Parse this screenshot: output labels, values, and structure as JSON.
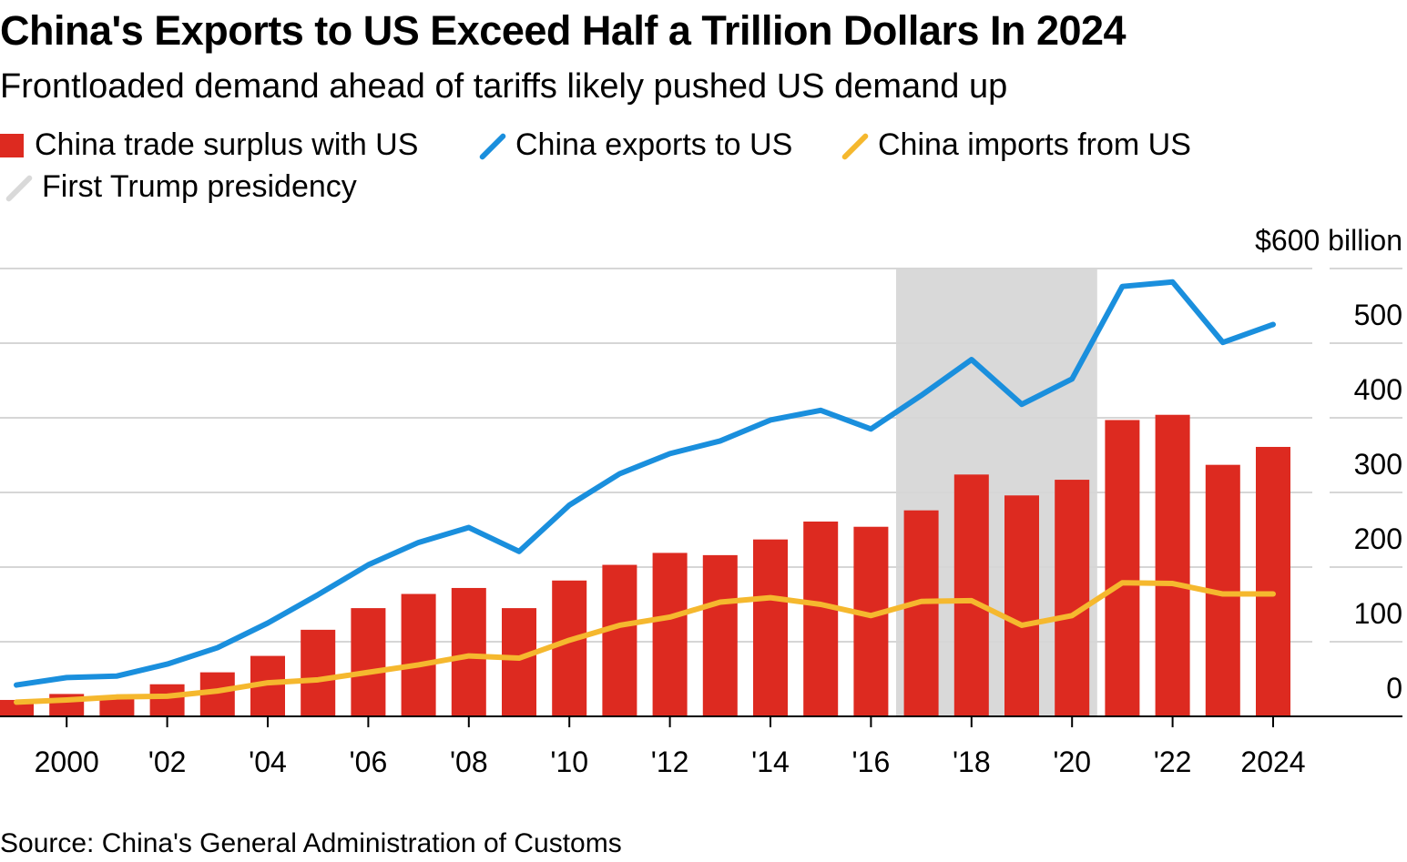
{
  "title": "China's Exports to US Exceed Half a Trillion Dollars In 2024",
  "subtitle": "Frontloaded demand ahead of tariffs likely pushed US demand up",
  "legend": [
    {
      "label": "China trade surplus with US",
      "kind": "bar",
      "color": "#dd2a20"
    },
    {
      "label": "China exports to US",
      "kind": "line",
      "color": "#1a8fdd"
    },
    {
      "label": "China imports from US",
      "kind": "line",
      "color": "#f5b82e"
    },
    {
      "label": "First Trump presidency",
      "kind": "shade",
      "color": "#d9d9d9"
    }
  ],
  "source": "Source: China's General Administration of Customs",
  "chart_data": {
    "type": "bar+line",
    "x": [
      1999,
      2000,
      2001,
      2002,
      2003,
      2004,
      2005,
      2006,
      2007,
      2008,
      2009,
      2010,
      2011,
      2012,
      2013,
      2014,
      2015,
      2016,
      2017,
      2018,
      2019,
      2020,
      2021,
      2022,
      2023,
      2024
    ],
    "x_tick_values": [
      2000,
      2002,
      2004,
      2006,
      2008,
      2010,
      2012,
      2014,
      2016,
      2018,
      2020,
      2022,
      2024
    ],
    "x_tick_labels": [
      "2000",
      "'02",
      "'04",
      "'06",
      "'08",
      "'10",
      "'12",
      "'14",
      "'16",
      "'18",
      "'20",
      "'22",
      "2024"
    ],
    "y_tick_values": [
      0,
      100,
      200,
      300,
      400,
      500,
      600
    ],
    "y_tick_labels": [
      "0",
      "100",
      "200",
      "300",
      "400",
      "500",
      "$600 billion"
    ],
    "ylim": [
      0,
      600
    ],
    "grid": true,
    "shaded_region": {
      "label": "First Trump presidency",
      "from": 2017,
      "to": 2021
    },
    "series": [
      {
        "name": "China trade surplus with US",
        "type": "bar",
        "color": "#dd2a20",
        "values": [
          22,
          30,
          28,
          43,
          59,
          81,
          116,
          145,
          164,
          172,
          145,
          182,
          203,
          219,
          216,
          237,
          261,
          254,
          276,
          324,
          296,
          317,
          397,
          404,
          337,
          361
        ]
      },
      {
        "name": "China exports to US",
        "type": "line",
        "color": "#1a8fdd",
        "values": [
          42,
          52,
          54,
          70,
          92,
          125,
          163,
          203,
          233,
          253,
          221,
          283,
          325,
          352,
          369,
          397,
          410,
          385,
          430,
          478,
          418,
          452,
          576,
          582,
          501,
          525
        ]
      },
      {
        "name": "China imports from US",
        "type": "line",
        "color": "#f5b82e",
        "values": [
          19,
          22,
          26,
          27,
          34,
          45,
          49,
          59,
          69,
          81,
          78,
          102,
          122,
          133,
          153,
          159,
          150,
          135,
          154,
          155,
          122,
          135,
          179,
          178,
          164,
          164
        ]
      }
    ]
  }
}
